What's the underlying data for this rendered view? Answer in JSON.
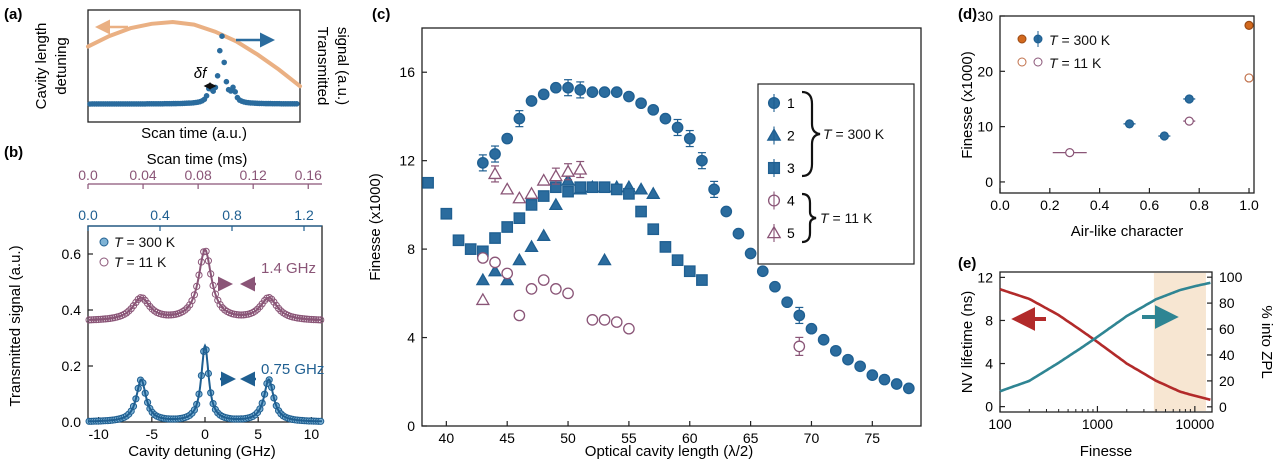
{
  "colors": {
    "blue": "#1f5f91",
    "blue_fill": "#2b6c9e",
    "blue_light": "#7fb3d5",
    "purple": "#8a5577",
    "orange": "#eab083",
    "red": "#b22a2a",
    "teal": "#2f8593",
    "shade": "#f7e6d2",
    "orange_dot": "#d2691e"
  },
  "panels": {
    "a": {
      "label": "(a)",
      "ylabel_left": [
        "Cavity length",
        "detuning"
      ],
      "ylabel_right": [
        "Transmitted",
        "signal (a.u.)"
      ],
      "xlabel": "Scan time (a.u.)",
      "annotation": "δf"
    },
    "b": {
      "label": "(b)",
      "top_axis_label": "Scan time (ms)",
      "top_ticks": [
        "0.0",
        "0.04",
        "0.08",
        "0.12",
        "0.16"
      ],
      "mid_ticks": [
        "0.0",
        "0.4",
        "0.8",
        "1.2"
      ],
      "legend": [
        "T = 300 K",
        "T = 11 K"
      ],
      "width_labels": [
        "1.4 GHz",
        "0.75 GHz"
      ]
    },
    "c": {
      "label": "(c)",
      "legend_numbers": [
        "1",
        "2",
        "3",
        "4",
        "5"
      ],
      "group_labels": [
        "T = 300 K",
        "T = 11 K"
      ]
    },
    "d": {
      "label": "(d)",
      "legend": [
        "T = 300 K",
        "T = 11 K"
      ]
    },
    "e": {
      "label": "(e)",
      "right_ylabel": "% into ZPL"
    }
  },
  "chart_data": [
    {
      "panel": "a",
      "type": "line",
      "title": "",
      "xlabel": "Scan time (a.u.)",
      "ylabel": "Cavity length detuning",
      "y2label": "Transmitted signal (a.u.)",
      "series": [
        {
          "name": "Cavity length detuning",
          "x": [
            0,
            0.1,
            0.2,
            0.3,
            0.4,
            0.5,
            0.6,
            0.7,
            0.8,
            0.9,
            1.0
          ],
          "values": [
            0.72,
            0.84,
            0.93,
            0.98,
            1.0,
            0.97,
            0.89,
            0.78,
            0.63,
            0.46,
            0.27
          ]
        },
        {
          "name": "Transmitted signal",
          "peak_x": 0.63,
          "peak_value": 1.0,
          "baseline": 0.0
        }
      ]
    },
    {
      "panel": "b",
      "type": "line",
      "title": "",
      "xlabel": "Cavity detuning (GHz)",
      "ylabel": "Transmitted signal (a.u.)",
      "x2label": "Scan time (ms)",
      "xlim": [
        -11,
        11
      ],
      "ylim": [
        0,
        0.7
      ],
      "xticks": [
        -10,
        -5,
        0,
        5,
        10
      ],
      "yticks": [
        0.0,
        0.2,
        0.4,
        0.6
      ],
      "series": [
        {
          "name": "T = 300 K",
          "baseline": 0.0,
          "center_peak": 0.27,
          "side_peaks": 0.15,
          "side_positions": [
            -6,
            6
          ],
          "fwhm_ghz": 0.75
        },
        {
          "name": "T = 11 K",
          "baseline": 0.36,
          "center_peak": 0.61,
          "side_peaks": 0.44,
          "side_positions": [
            -6,
            6
          ],
          "fwhm_ghz": 1.4
        }
      ]
    },
    {
      "panel": "c",
      "type": "scatter",
      "title": "",
      "xlabel": "Optical cavity length (λ/2)",
      "ylabel": "Finesse (x1000)",
      "xlim": [
        38,
        79
      ],
      "ylim": [
        0,
        18
      ],
      "xticks": [
        40,
        45,
        50,
        55,
        60,
        65,
        70,
        75
      ],
      "yticks": [
        0,
        4,
        8,
        12,
        16
      ],
      "series": [
        {
          "name": "1",
          "marker": "circle-filled",
          "x": [
            43,
            44,
            45,
            46,
            47,
            48,
            49,
            50,
            51,
            52,
            53,
            54,
            55,
            56,
            57,
            58,
            59,
            60,
            61,
            62,
            63,
            64,
            65,
            66,
            67,
            68,
            69,
            70,
            71,
            72,
            73,
            74,
            75,
            76,
            77,
            78
          ],
          "values": [
            11.9,
            12.3,
            13.0,
            13.9,
            14.7,
            15.0,
            15.3,
            15.3,
            15.2,
            15.1,
            15.1,
            15.1,
            14.9,
            14.6,
            14.3,
            13.9,
            13.5,
            13.0,
            12.0,
            10.7,
            9.7,
            8.7,
            7.8,
            7.0,
            6.3,
            5.6,
            5.0,
            4.4,
            3.9,
            3.4,
            3.0,
            2.7,
            2.3,
            2.1,
            1.9,
            1.7
          ]
        },
        {
          "name": "2",
          "marker": "triangle-filled",
          "x": [
            43,
            44,
            45,
            46,
            47,
            48,
            49,
            50,
            51,
            52,
            53,
            54,
            55,
            56,
            57
          ],
          "values": [
            6.6,
            7.0,
            6.6,
            7.5,
            8.1,
            8.6,
            10.0,
            11.1,
            10.7,
            10.8,
            7.5,
            10.8,
            10.8,
            10.7,
            10.5
          ]
        },
        {
          "name": "3",
          "marker": "square-filled",
          "x": [
            38.5,
            40,
            41,
            42,
            43,
            44,
            45,
            46,
            47,
            48,
            49,
            50,
            51,
            52,
            53,
            54,
            55,
            56,
            57,
            58,
            59,
            60,
            61
          ],
          "values": [
            11.0,
            9.6,
            8.4,
            8.0,
            7.9,
            8.5,
            9.0,
            9.4,
            10.0,
            10.4,
            10.8,
            10.6,
            10.8,
            10.8,
            10.8,
            10.7,
            10.5,
            9.7,
            8.9,
            8.1,
            7.5,
            7.0,
            6.6
          ]
        },
        {
          "name": "4",
          "marker": "circle-open",
          "x": [
            43,
            44,
            45,
            46,
            47,
            48,
            49,
            50,
            52,
            53,
            54,
            55,
            69
          ],
          "values": [
            7.6,
            7.4,
            6.9,
            5.0,
            6.2,
            6.6,
            6.2,
            6.0,
            4.8,
            4.8,
            4.7,
            4.4,
            3.6
          ]
        },
        {
          "name": "5",
          "marker": "triangle-open",
          "x": [
            43,
            44,
            45,
            46,
            47,
            48,
            49,
            50,
            51
          ],
          "values": [
            5.7,
            11.4,
            10.7,
            10.3,
            10.5,
            11.1,
            11.3,
            11.5,
            11.6
          ]
        }
      ]
    },
    {
      "panel": "d",
      "type": "scatter",
      "title": "",
      "xlabel": "Air-like character",
      "ylabel": "Finesse (x1000)",
      "xlim": [
        0.0,
        1.02
      ],
      "ylim": [
        0,
        30
      ],
      "xticks": [
        0.0,
        0.2,
        0.4,
        0.6,
        0.8,
        1.0
      ],
      "yticks": [
        0,
        10,
        20,
        30
      ],
      "series": [
        {
          "name": "T = 300 K",
          "x": [
            0.52,
            0.66,
            0.76,
            1.0
          ],
          "values": [
            10.5,
            8.3,
            15.0,
            28.3
          ]
        },
        {
          "name": "T = 11 K",
          "x": [
            0.28,
            0.76,
            1.0
          ],
          "values": [
            5.3,
            11.0,
            18.8
          ]
        }
      ]
    },
    {
      "panel": "e",
      "type": "line",
      "title": "",
      "xlabel": "Finesse",
      "ylabel": "NV lifetime (ns)",
      "y2label": "% into ZPL",
      "xscale": "log",
      "xlim": [
        100,
        15000
      ],
      "ylim": [
        0,
        12
      ],
      "y2lim": [
        0,
        100
      ],
      "xticks": [
        100,
        1000,
        10000
      ],
      "yticks": [
        0,
        4,
        8,
        12
      ],
      "y2ticks": [
        0,
        20,
        40,
        60,
        80,
        100
      ],
      "shaded_x_range": [
        3800,
        13000
      ],
      "series": [
        {
          "name": "NV lifetime (ns)",
          "x": [
            100,
            200,
            400,
            700,
            1000,
            2000,
            4000,
            7000,
            10000,
            15000
          ],
          "values": [
            10.9,
            10.0,
            8.5,
            7.0,
            6.0,
            4.0,
            2.4,
            1.4,
            1.0,
            0.6
          ]
        },
        {
          "name": "% into ZPL",
          "x": [
            100,
            200,
            400,
            700,
            1000,
            2000,
            4000,
            7000,
            10000,
            15000
          ],
          "values": [
            12,
            20,
            34,
            46,
            54,
            70,
            83,
            90,
            93,
            96
          ]
        }
      ]
    }
  ]
}
